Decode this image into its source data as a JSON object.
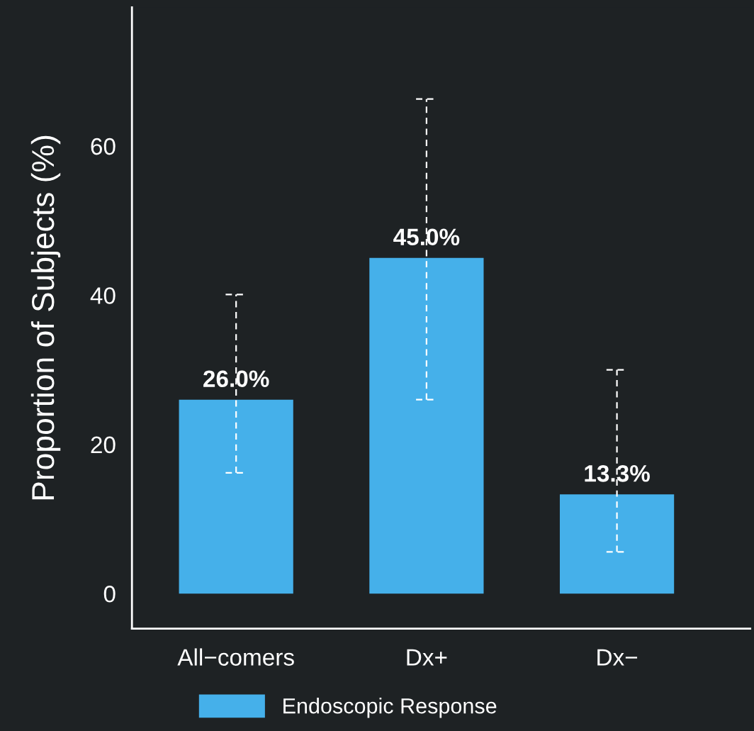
{
  "chart_data": {
    "type": "bar",
    "ylabel": "Proportion of Subjects (%)",
    "categories": [
      "All−comers",
      "Dx+",
      "Dx−"
    ],
    "series": [
      {
        "name": "Endoscopic Response",
        "color": "#45b0ea",
        "values": [
          26.0,
          45.0,
          13.3
        ],
        "value_labels": [
          "26.0%",
          "45.0%",
          "13.3%"
        ],
        "errors": [
          [
            16.2,
            40.1
          ],
          [
            26.0,
            66.3
          ],
          [
            5.6,
            30.0
          ]
        ]
      }
    ],
    "ylim": [
      -4.7,
      78.6
    ],
    "yticks": [
      0,
      20,
      40,
      60
    ],
    "grid": false,
    "legend": "bottom",
    "line_style": "dashed"
  }
}
